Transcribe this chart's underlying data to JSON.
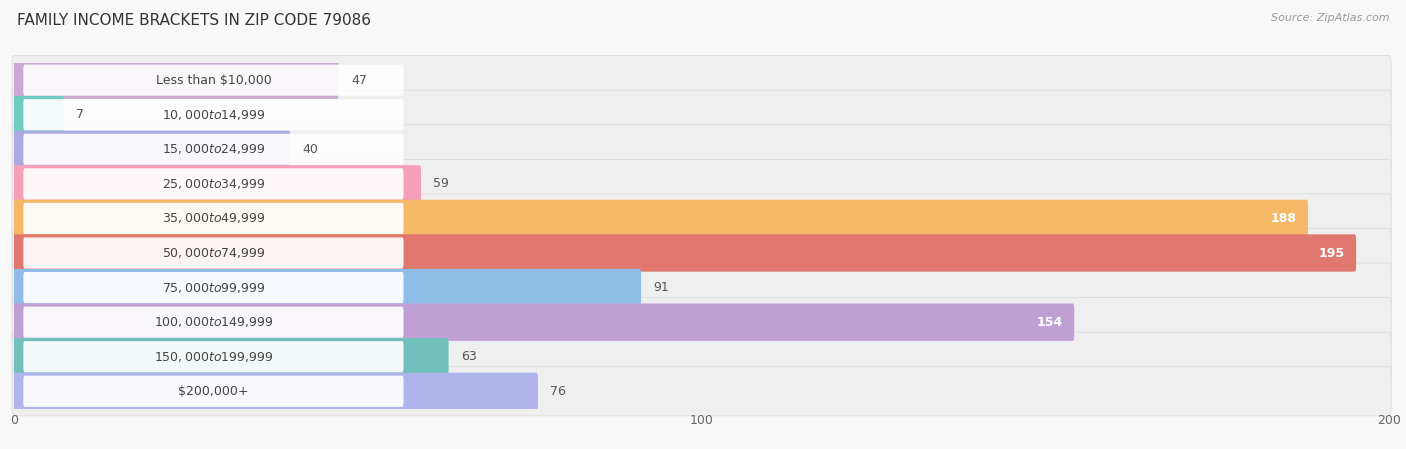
{
  "title": "FAMILY INCOME BRACKETS IN ZIP CODE 79086",
  "source": "Source: ZipAtlas.com",
  "categories": [
    "Less than $10,000",
    "$10,000 to $14,999",
    "$15,000 to $24,999",
    "$25,000 to $34,999",
    "$35,000 to $49,999",
    "$50,000 to $74,999",
    "$75,000 to $99,999",
    "$100,000 to $149,999",
    "$150,000 to $199,999",
    "$200,000+"
  ],
  "values": [
    47,
    7,
    40,
    59,
    188,
    195,
    91,
    154,
    63,
    76
  ],
  "colors": [
    "#c9a8d4",
    "#6eccc0",
    "#aaaae0",
    "#f5a0b8",
    "#f5b866",
    "#e07870",
    "#90bce8",
    "#c0a0d4",
    "#70c0bc",
    "#b0b4ec"
  ],
  "xlim": [
    0,
    200
  ],
  "xticks": [
    0,
    100,
    200
  ],
  "bg_color": "#f8f8f8",
  "row_bg_color": "#efefef",
  "label_inside_threshold": 100,
  "title_fontsize": 11,
  "source_fontsize": 8,
  "value_fontsize": 9,
  "category_fontsize": 9,
  "tick_fontsize": 9
}
